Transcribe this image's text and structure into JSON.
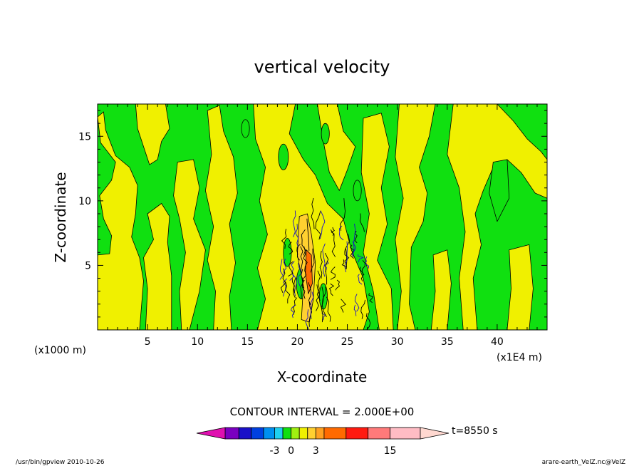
{
  "chart_data": {
    "type": "heatmap",
    "title": "vertical velocity",
    "xlabel": "X-coordinate",
    "ylabel": "Z-coordinate",
    "x_unit_label": "(x1E4 m)",
    "y_unit_label": "(x1000 m)",
    "xlim": [
      0,
      45
    ],
    "ylim": [
      0,
      17.5
    ],
    "x_ticks": [
      5,
      10,
      15,
      20,
      25,
      30,
      35,
      40
    ],
    "y_ticks": [
      5,
      10,
      15
    ],
    "x_tick_labels": [
      "5",
      "10",
      "15",
      "20",
      "25",
      "30",
      "35",
      "40"
    ],
    "y_tick_labels": [
      "5",
      "10",
      "15"
    ],
    "contour_interval_text": "CONTOUR INTERVAL = 2.000E+00",
    "colorbar": {
      "colors": [
        "#e010b0",
        "#7a00c0",
        "#1a10c8",
        "#0040e0",
        "#0090f0",
        "#20d0f0",
        "#10e010",
        "#a0f010",
        "#f0f000",
        "#ffd030",
        "#ffa020",
        "#ff6a00",
        "#ff1a10",
        "#ff7a7a",
        "#ffbcc4",
        "#ffd8d0"
      ],
      "tick_labels": [
        "-3",
        "0",
        "3",
        "15"
      ]
    },
    "time_label": "t=8550 s",
    "dominant_field": {
      "positive_fill": "#f0f000",
      "negative_fill": "#10e010",
      "updraft_core_x_range": [
        20,
        22
      ],
      "updraft_core_z_range": [
        0,
        9
      ],
      "turbulent_x_range": [
        17,
        29
      ]
    }
  },
  "footer": {
    "left": "/usr/bin/gpview  2010-10-26",
    "right": "arare-earth_VelZ.nc@VelZ"
  }
}
